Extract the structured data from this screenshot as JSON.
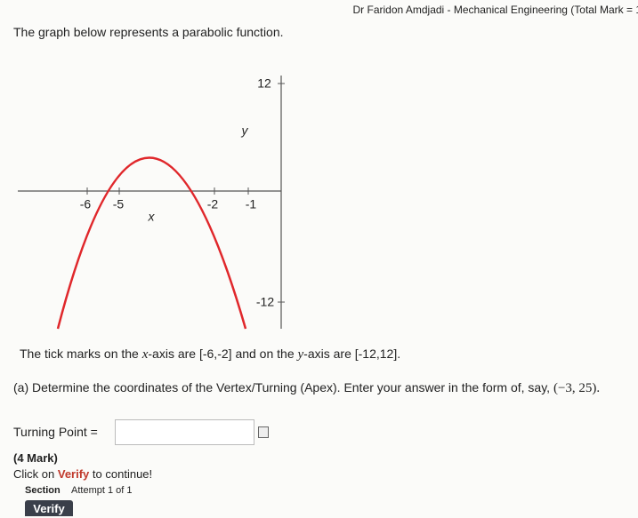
{
  "header": {
    "title": "Dr Faridon Amdjadi - Mechanical Engineering (Total Mark = 1"
  },
  "question": {
    "intro": "The graph below represents a parabolic function.",
    "graph": {
      "labels": [
        "12",
        "y",
        "-6",
        "-5",
        "-2",
        "-1",
        "x",
        "-12"
      ]
    },
    "ticks_text": [
      "The tick marks on the",
      "x",
      "-axis are",
      "[-6,-2]",
      "and on the",
      "y",
      "-axis are",
      "[-12,12]."
    ],
    "part_a": [
      "(a) Determine the coordinates of the Vertex/Turning (Apex). Enter your answer in the form of, say,",
      "(−3, 25)."
    ],
    "answer_label": "Turning Point =",
    "marks": "(4 Mark)",
    "instruction": [
      "Click on",
      "Verify",
      "to continue!"
    ],
    "section": "Section",
    "attempt": "Attempt 1 of 1",
    "button": "Verify"
  }
}
